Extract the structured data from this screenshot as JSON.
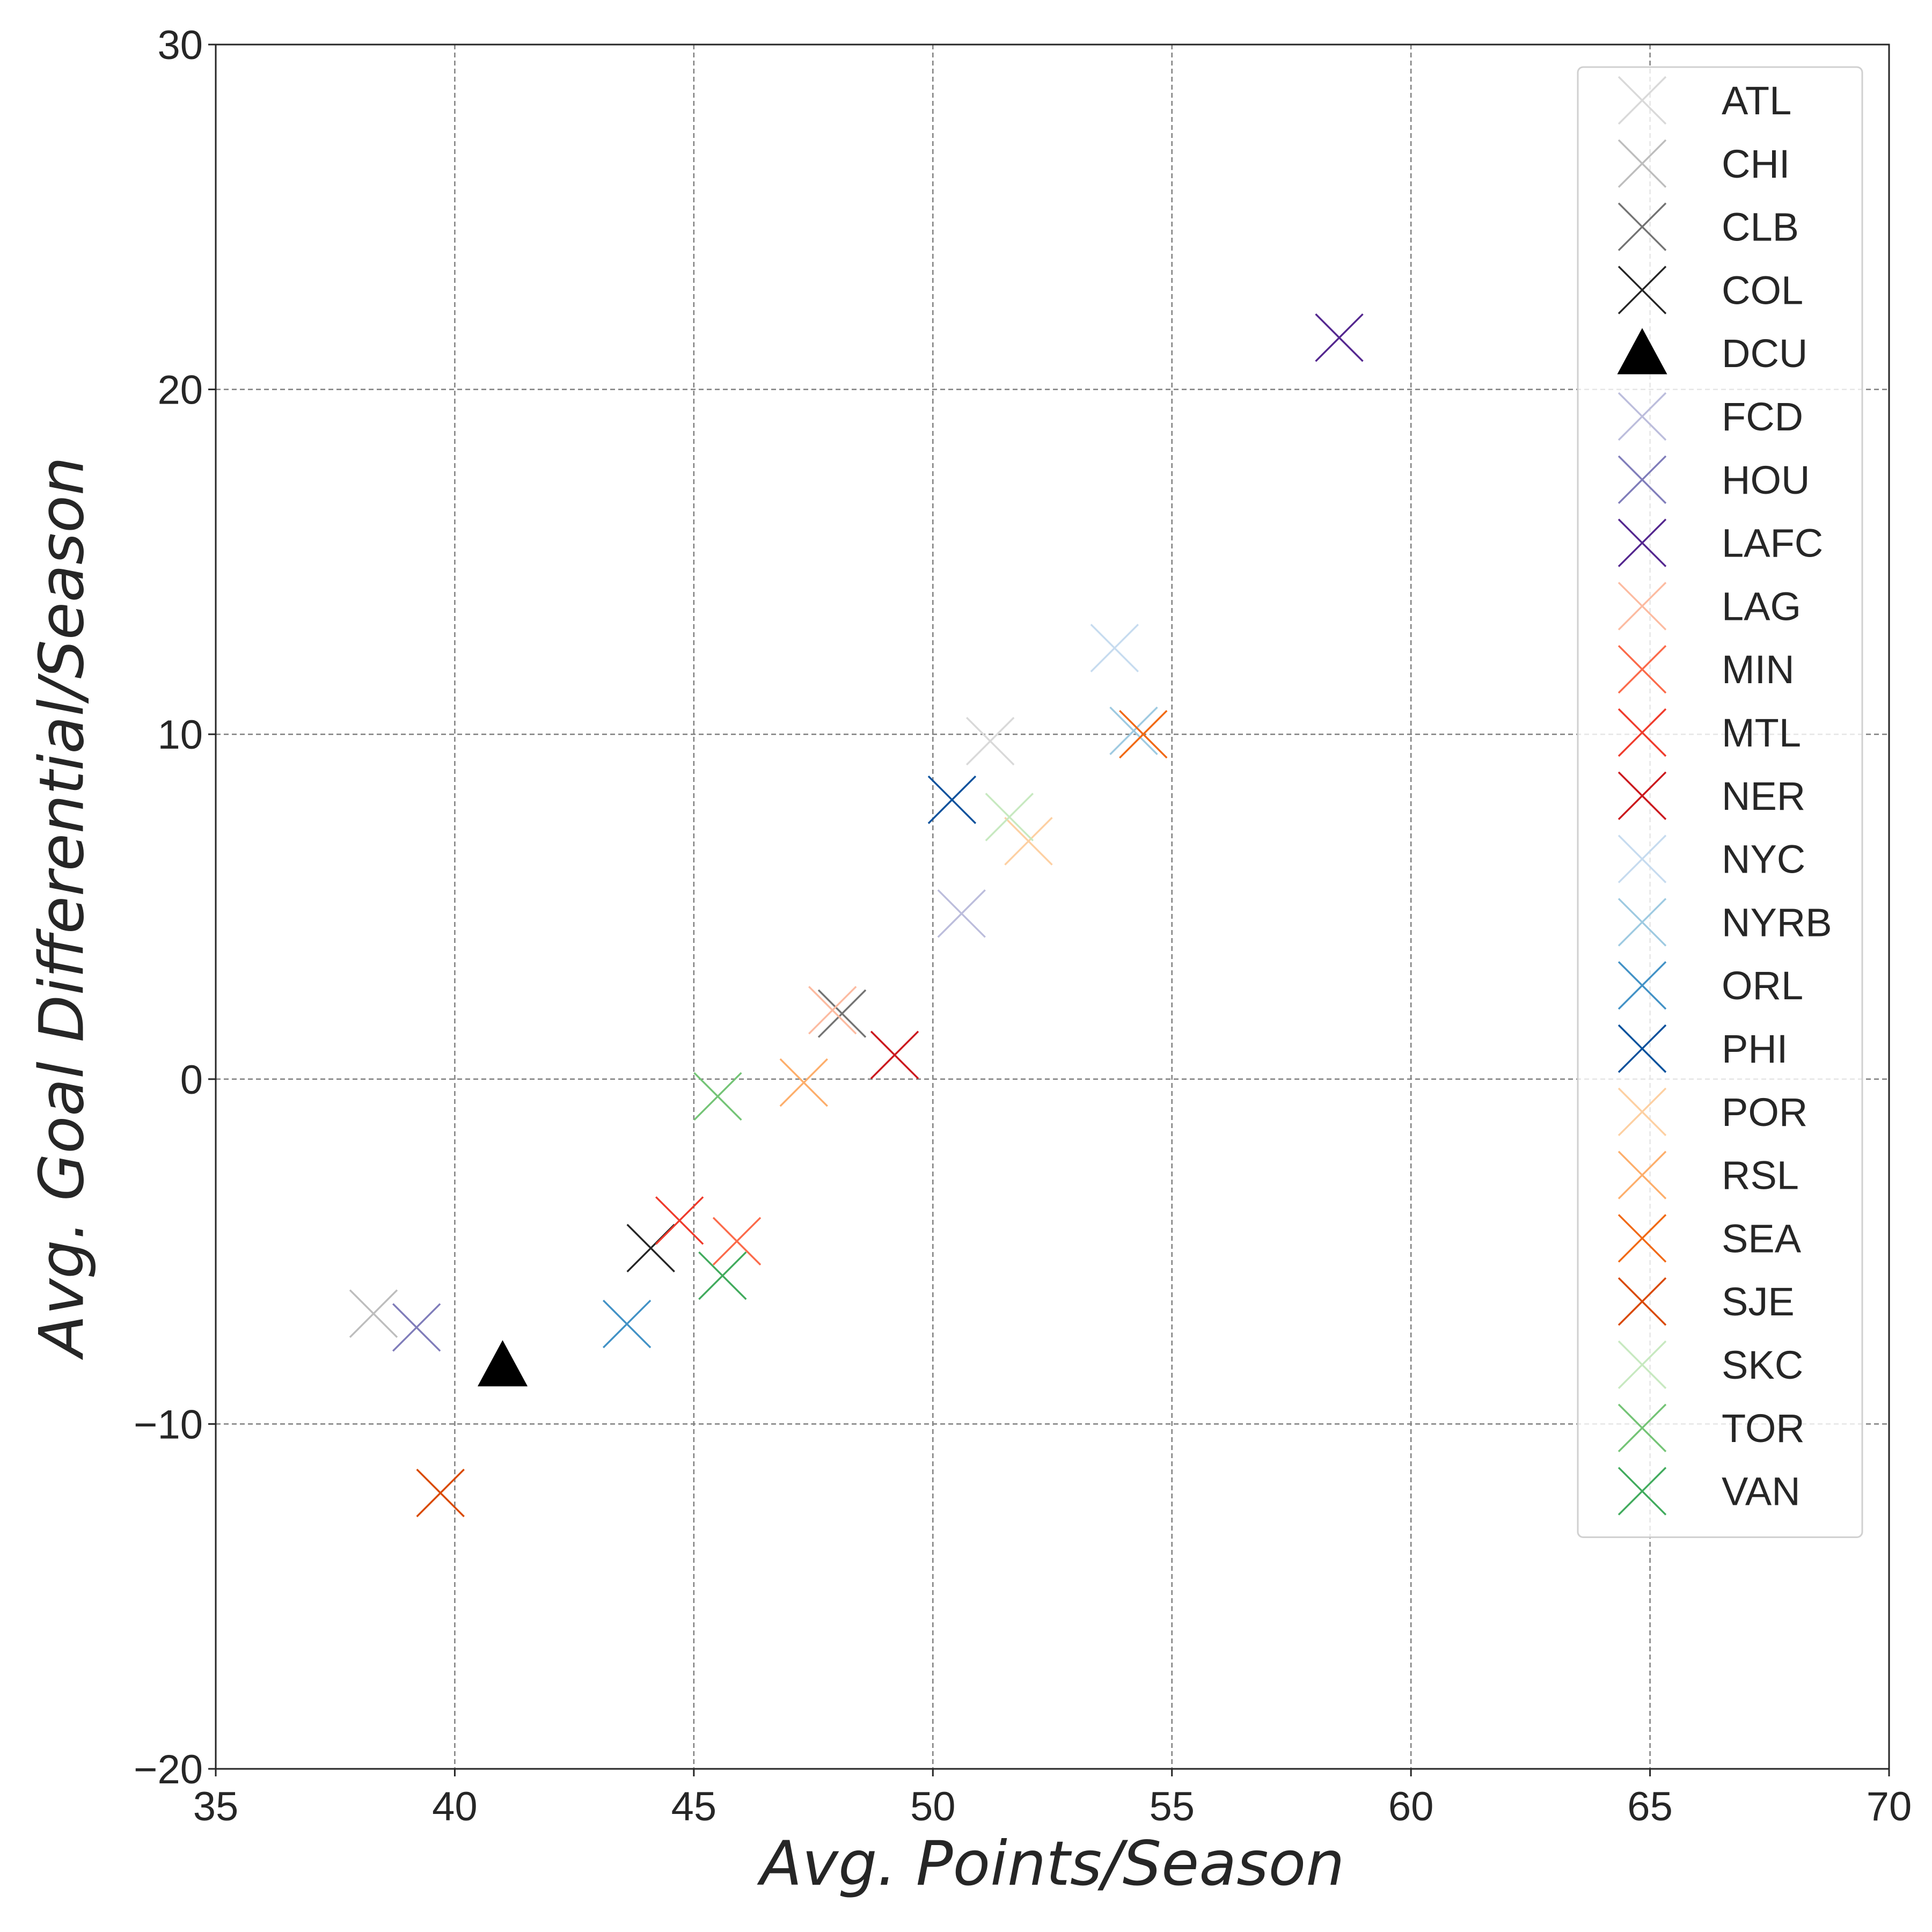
{
  "chart_data": {
    "type": "scatter",
    "xlabel": "Avg. Points/Season",
    "ylabel": "Avg. Goal Differential/Season",
    "xlim": [
      35,
      70
    ],
    "ylim": [
      -20,
      30
    ],
    "xticks": [
      35,
      40,
      45,
      50,
      55,
      60,
      65,
      70
    ],
    "yticks": [
      -20,
      -10,
      0,
      10,
      20,
      30
    ],
    "xtick_labels": [
      "35",
      "40",
      "45",
      "50",
      "55",
      "60",
      "65",
      "70"
    ],
    "ytick_labels": [
      "−20",
      "−10",
      "0",
      "10",
      "20",
      "30"
    ],
    "grid": true,
    "legend_position": "top-right",
    "series": [
      {
        "name": "ATL",
        "x": 51.2,
        "y": 9.8,
        "marker": "x",
        "color": "#d9d9d9"
      },
      {
        "name": "CHI",
        "x": 38.3,
        "y": -6.8,
        "marker": "x",
        "color": "#bdbdbd"
      },
      {
        "name": "CLB",
        "x": 48.1,
        "y": 1.9,
        "marker": "x",
        "color": "#737373"
      },
      {
        "name": "COL",
        "x": 44.1,
        "y": -4.9,
        "marker": "x",
        "color": "#252525"
      },
      {
        "name": "DCU",
        "x": 41.0,
        "y": -8.3,
        "marker": "triangle",
        "color": "#000000"
      },
      {
        "name": "FCD",
        "x": 50.6,
        "y": 4.8,
        "marker": "x",
        "color": "#bcbddc"
      },
      {
        "name": "HOU",
        "x": 39.2,
        "y": -7.2,
        "marker": "x",
        "color": "#807dba"
      },
      {
        "name": "LAFC",
        "x": 58.5,
        "y": 21.5,
        "marker": "x",
        "color": "#54278f"
      },
      {
        "name": "LAG",
        "x": 47.9,
        "y": 2.0,
        "marker": "x",
        "color": "#fcbba1"
      },
      {
        "name": "MIN",
        "x": 45.9,
        "y": -4.7,
        "marker": "x",
        "color": "#fb6a4a"
      },
      {
        "name": "MTL",
        "x": 44.7,
        "y": -4.1,
        "marker": "x",
        "color": "#ef3b2c"
      },
      {
        "name": "NER",
        "x": 49.2,
        "y": 0.7,
        "marker": "x",
        "color": "#cb181d"
      },
      {
        "name": "NYC",
        "x": 53.8,
        "y": 12.5,
        "marker": "x",
        "color": "#c6dbef"
      },
      {
        "name": "NYRB",
        "x": 54.2,
        "y": 10.1,
        "marker": "x",
        "color": "#9ecae1"
      },
      {
        "name": "ORL",
        "x": 43.6,
        "y": -7.1,
        "marker": "x",
        "color": "#4292c6"
      },
      {
        "name": "PHI",
        "x": 50.4,
        "y": 8.1,
        "marker": "x",
        "color": "#08519c"
      },
      {
        "name": "POR",
        "x": 52.0,
        "y": 6.9,
        "marker": "x",
        "color": "#fdd0a2"
      },
      {
        "name": "RSL",
        "x": 47.3,
        "y": -0.1,
        "marker": "x",
        "color": "#fdae6b"
      },
      {
        "name": "SEA",
        "x": 54.4,
        "y": 10.0,
        "marker": "x",
        "color": "#f16913"
      },
      {
        "name": "SJE",
        "x": 39.7,
        "y": -12.0,
        "marker": "x",
        "color": "#d94801"
      },
      {
        "name": "SKC",
        "x": 51.6,
        "y": 7.6,
        "marker": "x",
        "color": "#c7e9c0"
      },
      {
        "name": "TOR",
        "x": 45.5,
        "y": -0.5,
        "marker": "x",
        "color": "#74c476"
      },
      {
        "name": "VAN",
        "x": 45.6,
        "y": -5.7,
        "marker": "x",
        "color": "#41ab5d"
      }
    ]
  }
}
